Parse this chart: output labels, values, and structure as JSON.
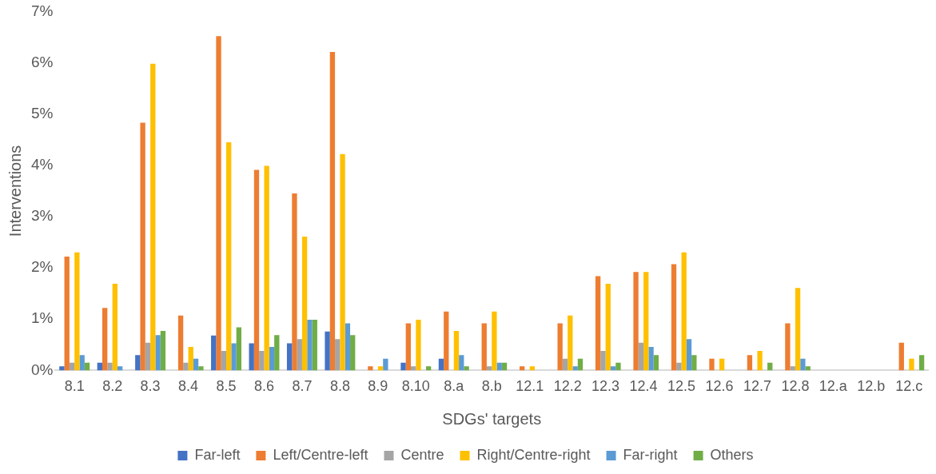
{
  "chart_data": {
    "type": "bar",
    "xlabel": "SDGs' targets",
    "ylabel": "Interventions",
    "categories": [
      "8.1",
      "8.2",
      "8.3",
      "8.4",
      "8.5",
      "8.6",
      "8.7",
      "8.8",
      "8.9",
      "8.10",
      "8.a",
      "8.b",
      "12.1",
      "12.2",
      "12.3",
      "12.4",
      "12.5",
      "12.6",
      "12.7",
      "12.8",
      "12.a",
      "12.b",
      "12.c"
    ],
    "series": [
      {
        "name": "Far-left",
        "color": "#4472c4",
        "values": [
          0.08,
          0.15,
          0.3,
          0,
          0.68,
          0.53,
          0.53,
          0.76,
          0,
          0.15,
          0.23,
          0,
          0,
          0,
          0,
          0,
          0,
          0,
          0,
          0,
          0,
          0,
          0
        ]
      },
      {
        "name": "Left/Centre-left",
        "color": "#ed7d31",
        "values": [
          2.22,
          1.22,
          4.83,
          1.07,
          6.52,
          3.91,
          3.45,
          6.21,
          0.08,
          0.92,
          1.15,
          0.92,
          0.08,
          0.92,
          1.84,
          1.92,
          2.07,
          0.23,
          0.3,
          0.92,
          0,
          0,
          0.54
        ]
      },
      {
        "name": "Centre",
        "color": "#a5a5a5",
        "values": [
          0.15,
          0.15,
          0.54,
          0.15,
          0.38,
          0.38,
          0.61,
          0.61,
          0,
          0.08,
          0,
          0.08,
          0,
          0.23,
          0.38,
          0.54,
          0.15,
          0,
          0,
          0.08,
          0,
          0,
          0
        ]
      },
      {
        "name": "Right/Centre-right",
        "color": "#ffc000",
        "values": [
          2.3,
          1.69,
          5.98,
          0.46,
          4.45,
          3.99,
          2.61,
          4.22,
          0.08,
          0.99,
          0.77,
          1.15,
          0.08,
          1.07,
          1.69,
          1.92,
          2.3,
          0.23,
          0.38,
          1.61,
          0,
          0,
          0.23
        ]
      },
      {
        "name": "Far-right",
        "color": "#5b9bd5",
        "values": [
          0.3,
          0.08,
          0.69,
          0.23,
          0.53,
          0.46,
          0.99,
          0.92,
          0.23,
          0,
          0.3,
          0.15,
          0,
          0.08,
          0.08,
          0.46,
          0.61,
          0,
          0,
          0.23,
          0,
          0,
          0
        ]
      },
      {
        "name": "Others",
        "color": "#70ad47",
        "values": [
          0.15,
          0,
          0.77,
          0.08,
          0.84,
          0.69,
          0.99,
          0.69,
          0,
          0.08,
          0.08,
          0.15,
          0,
          0.23,
          0.15,
          0.3,
          0.3,
          0,
          0.15,
          0.08,
          0,
          0,
          0.3
        ]
      }
    ],
    "ylim": [
      0,
      7
    ],
    "yticks": [
      {
        "value": 0,
        "label": "0%"
      },
      {
        "value": 1,
        "label": "1%"
      },
      {
        "value": 2,
        "label": "2%"
      },
      {
        "value": 3,
        "label": "3%"
      },
      {
        "value": 4,
        "label": "4%"
      },
      {
        "value": 5,
        "label": "5%"
      },
      {
        "value": 6,
        "label": "6%"
      },
      {
        "value": 7,
        "label": "7%"
      }
    ],
    "grid": false,
    "legend": "bottom"
  }
}
